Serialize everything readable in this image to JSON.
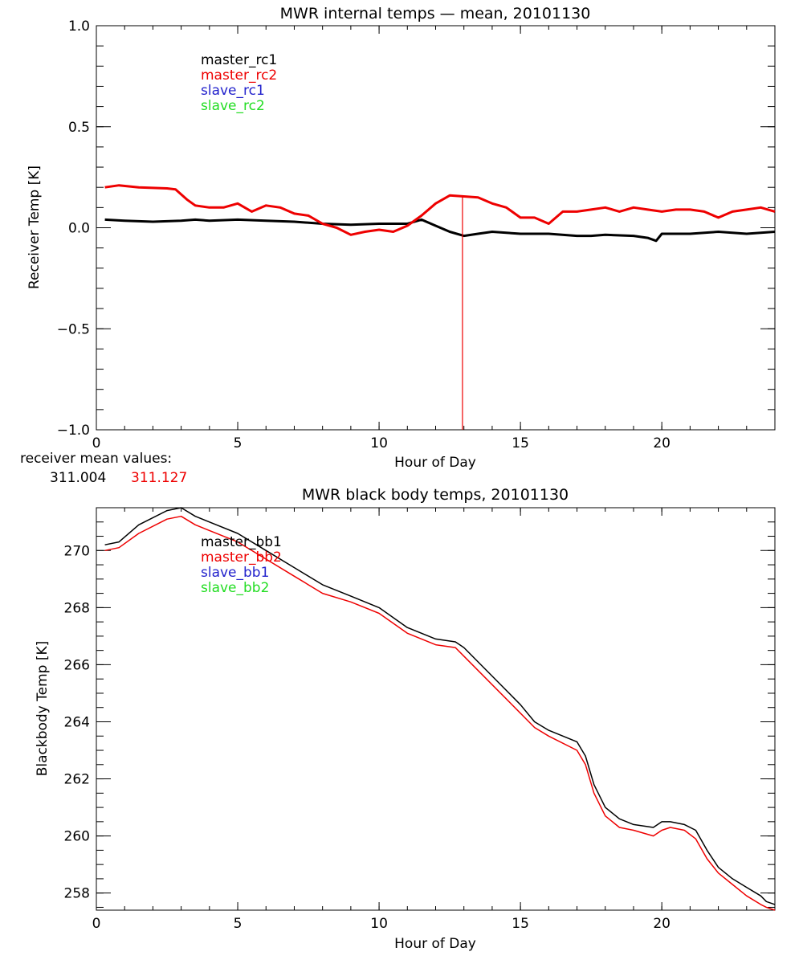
{
  "colors": {
    "black": "#000000",
    "red": "#ee0000",
    "blue": "#2222cc",
    "green": "#22dd22",
    "axis": "#000000"
  },
  "receiver_mean": {
    "label": "receiver mean values:",
    "values": [
      "311.004",
      "311.127"
    ]
  },
  "chart_data": [
    {
      "type": "line",
      "title": "MWR internal temps — mean, 20101130",
      "xlabel": "Hour of Day",
      "ylabel": "Receiver Temp [K]",
      "xlim": [
        0,
        24
      ],
      "ylim": [
        -1.0,
        1.0
      ],
      "xticks": [
        0,
        5,
        10,
        15,
        20
      ],
      "xtick_labels": [
        "0",
        "5",
        "10",
        "15",
        "20"
      ],
      "yticks": [
        -1.0,
        -0.5,
        0.0,
        0.5,
        1.0
      ],
      "ytick_labels": [
        "−1.0",
        "−0.5",
        "0.0",
        "0.5",
        "1.0"
      ],
      "legend": [
        "master_rc1",
        "master_rc2",
        "slave_rc1",
        "slave_rc2"
      ],
      "legend_colors": [
        "black",
        "red",
        "blue",
        "green"
      ],
      "annotations": [
        {
          "type": "vline",
          "x": 12.95,
          "color": "red"
        }
      ],
      "series": [
        {
          "name": "master_rc1",
          "color": "black",
          "x": [
            0.3,
            1,
            2,
            3,
            3.5,
            4,
            5,
            6,
            7,
            8,
            9,
            10,
            10.5,
            11,
            11.5,
            12,
            12.5,
            13,
            13.5,
            14,
            15,
            16,
            17,
            17.5,
            18,
            19,
            19.5,
            19.8,
            20,
            21,
            22,
            23,
            24
          ],
          "values": [
            0.04,
            0.035,
            0.03,
            0.035,
            0.04,
            0.035,
            0.04,
            0.035,
            0.03,
            0.02,
            0.015,
            0.02,
            0.02,
            0.02,
            0.04,
            0.01,
            -0.02,
            -0.04,
            -0.03,
            -0.02,
            -0.03,
            -0.03,
            -0.04,
            -0.04,
            -0.035,
            -0.04,
            -0.05,
            -0.065,
            -0.03,
            -0.03,
            -0.02,
            -0.03,
            -0.02
          ]
        },
        {
          "name": "master_rc2",
          "color": "red",
          "x": [
            0.3,
            0.8,
            1.5,
            2.5,
            2.8,
            3.2,
            3.5,
            4,
            4.5,
            5,
            5.5,
            6,
            6.5,
            7,
            7.5,
            8,
            8.5,
            9,
            9.5,
            10,
            10.5,
            11,
            11.5,
            12,
            12.5,
            13,
            13.5,
            14,
            14.5,
            15,
            15.5,
            16,
            16.5,
            17,
            17.5,
            18,
            18.5,
            19,
            19.5,
            20,
            20.5,
            21,
            21.5,
            22,
            22.5,
            23,
            23.5,
            24
          ],
          "values": [
            0.2,
            0.21,
            0.2,
            0.195,
            0.19,
            0.14,
            0.11,
            0.1,
            0.1,
            0.12,
            0.08,
            0.11,
            0.1,
            0.07,
            0.06,
            0.02,
            0.0,
            -0.035,
            -0.02,
            -0.01,
            -0.02,
            0.01,
            0.06,
            0.12,
            0.16,
            0.155,
            0.15,
            0.12,
            0.1,
            0.05,
            0.05,
            0.02,
            0.08,
            0.08,
            0.09,
            0.1,
            0.08,
            0.1,
            0.09,
            0.08,
            0.09,
            0.09,
            0.08,
            0.05,
            0.08,
            0.09,
            0.1,
            0.08
          ]
        }
      ]
    },
    {
      "type": "line",
      "title": "MWR black body temps, 20101130",
      "xlabel": "Hour of Day",
      "ylabel": "Blackbody Temp [K]",
      "xlim": [
        0,
        24
      ],
      "ylim": [
        257.4,
        271.5
      ],
      "xticks": [
        0,
        5,
        10,
        15,
        20
      ],
      "xtick_labels": [
        "0",
        "5",
        "10",
        "15",
        "20"
      ],
      "yticks": [
        258,
        260,
        262,
        264,
        266,
        268,
        270
      ],
      "ytick_labels": [
        "258",
        "260",
        "262",
        "264",
        "266",
        "268",
        "270"
      ],
      "legend": [
        "master_bb1",
        "master_bb2",
        "slave_bb1",
        "slave_bb2"
      ],
      "legend_colors": [
        "black",
        "red",
        "blue",
        "green"
      ],
      "series": [
        {
          "name": "master_bb1",
          "color": "black",
          "x": [
            0.3,
            0.8,
            1.5,
            2.5,
            3.0,
            3.5,
            4,
            5,
            6,
            7,
            8,
            9,
            10,
            11,
            12,
            12.7,
            13,
            14,
            15,
            15.5,
            16,
            17,
            17.3,
            17.6,
            18,
            18.5,
            19,
            19.7,
            20.0,
            20.3,
            20.8,
            21.2,
            21.6,
            22,
            22.5,
            23,
            23.5,
            23.7,
            24
          ],
          "values": [
            270.2,
            270.3,
            270.9,
            271.4,
            271.5,
            271.2,
            271.0,
            270.6,
            270.0,
            269.4,
            268.8,
            268.4,
            268.0,
            267.3,
            266.9,
            266.8,
            266.6,
            265.6,
            264.6,
            264.0,
            263.7,
            263.3,
            262.8,
            261.8,
            261.0,
            260.6,
            260.4,
            260.3,
            260.5,
            260.5,
            260.4,
            260.2,
            259.5,
            258.9,
            258.5,
            258.2,
            257.9,
            257.7,
            257.6
          ]
        },
        {
          "name": "master_bb2",
          "color": "red",
          "x": [
            0.3,
            0.8,
            1.5,
            2.5,
            3.0,
            3.5,
            4,
            5,
            6,
            7,
            8,
            9,
            10,
            11,
            12,
            12.7,
            13,
            14,
            15,
            15.5,
            16,
            17,
            17.3,
            17.6,
            18,
            18.5,
            19,
            19.7,
            20.0,
            20.3,
            20.8,
            21.2,
            21.6,
            22,
            22.5,
            23,
            23.5,
            23.7,
            24
          ],
          "values": [
            270.0,
            270.1,
            270.6,
            271.1,
            271.2,
            270.9,
            270.7,
            270.3,
            269.7,
            269.1,
            268.5,
            268.2,
            267.8,
            267.1,
            266.7,
            266.6,
            266.3,
            265.3,
            264.3,
            263.8,
            263.5,
            263.0,
            262.5,
            261.5,
            260.7,
            260.3,
            260.2,
            260.0,
            260.2,
            260.3,
            260.2,
            259.9,
            259.2,
            258.7,
            258.3,
            257.9,
            257.6,
            257.5,
            257.4
          ]
        }
      ]
    }
  ]
}
